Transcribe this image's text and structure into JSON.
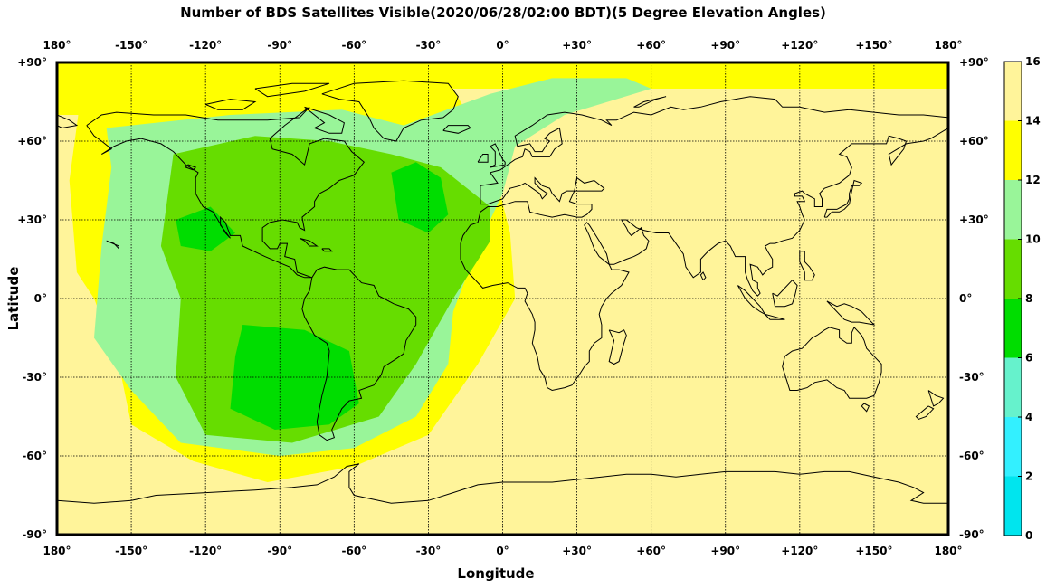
{
  "title": "Number of BDS Satellites Visible(2020/06/28/02:00 BDT)(5 Degree Elevation Angles)",
  "xlabel": "Longitude",
  "ylabel": "Latitude",
  "lon_ticks": [
    "180°",
    "-150°",
    "-120°",
    "-90°",
    "-60°",
    "-30°",
    "0°",
    "+30°",
    "+60°",
    "+90°",
    "+120°",
    "+150°",
    "180°"
  ],
  "lat_ticks": [
    "+90°",
    "+60°",
    "+30°",
    "0°",
    "-30°",
    "-60°",
    "-90°"
  ],
  "colorbar": {
    "ticks": [
      "0",
      "2",
      "4",
      "6",
      "8",
      "10",
      "12",
      "14",
      "16"
    ],
    "bands": [
      {
        "from": 0,
        "to": 2,
        "color": "#00e5ee"
      },
      {
        "from": 2,
        "to": 4,
        "color": "#33f0ff"
      },
      {
        "from": 4,
        "to": 6,
        "color": "#66f2cc"
      },
      {
        "from": 6,
        "to": 8,
        "color": "#00dd00"
      },
      {
        "from": 8,
        "to": 10,
        "color": "#66dd00"
      },
      {
        "from": 10,
        "to": 12,
        "color": "#99f599"
      },
      {
        "from": 12,
        "to": 14,
        "color": "#ffff00"
      },
      {
        "from": 14,
        "to": 16,
        "color": "#fff49a"
      }
    ]
  },
  "colors": {
    "c15": "#fff49a",
    "c13": "#ffff00",
    "c11": "#99f599",
    "c9": "#66dd00",
    "c7": "#00dd00",
    "c5": "#66f2cc"
  },
  "visibility_regions": [
    {
      "level": 13,
      "polys": [
        [
          [
            -180,
            90
          ],
          [
            180,
            90
          ],
          [
            180,
            80
          ],
          [
            -180,
            80
          ]
        ],
        [
          [
            -180,
            80
          ],
          [
            -150,
            80
          ],
          [
            -150,
            70
          ],
          [
            -180,
            70
          ]
        ],
        [
          [
            -165,
            0
          ],
          [
            -155,
            -25
          ],
          [
            -150,
            -48
          ],
          [
            -125,
            -62
          ],
          [
            -95,
            -70
          ],
          [
            -60,
            -64
          ],
          [
            -30,
            -52
          ],
          [
            -10,
            -25
          ],
          [
            5,
            0
          ],
          [
            3,
            25
          ],
          [
            -5,
            55
          ],
          [
            -20,
            80
          ],
          [
            -170,
            80
          ],
          [
            -175,
            45
          ],
          [
            -172,
            10
          ]
        ]
      ]
    },
    {
      "level": 11,
      "polys": [
        [
          [
            -160,
            65
          ],
          [
            -110,
            70
          ],
          [
            -65,
            72
          ],
          [
            -40,
            66
          ],
          [
            -5,
            78
          ],
          [
            20,
            84
          ],
          [
            50,
            84
          ],
          [
            60,
            80
          ],
          [
            25,
            70
          ],
          [
            5,
            58
          ],
          [
            0,
            40
          ],
          [
            -10,
            20
          ],
          [
            -20,
            -5
          ],
          [
            -22,
            -25
          ],
          [
            -35,
            -45
          ],
          [
            -60,
            -57
          ],
          [
            -90,
            -60
          ],
          [
            -130,
            -55
          ],
          [
            -150,
            -35
          ],
          [
            -165,
            -15
          ],
          [
            -162,
            20
          ],
          [
            -158,
            50
          ]
        ]
      ]
    },
    {
      "level": 9,
      "polys": [
        [
          [
            -133,
            55
          ],
          [
            -100,
            62
          ],
          [
            -70,
            60
          ],
          [
            -45,
            55
          ],
          [
            -25,
            50
          ],
          [
            -5,
            35
          ],
          [
            -5,
            22
          ],
          [
            -20,
            0
          ],
          [
            -35,
            -25
          ],
          [
            -50,
            -45
          ],
          [
            -85,
            -55
          ],
          [
            -120,
            -52
          ],
          [
            -132,
            -30
          ],
          [
            -130,
            0
          ],
          [
            -138,
            20
          ]
        ]
      ]
    },
    {
      "level": 7,
      "polys": [
        [
          [
            -132,
            30
          ],
          [
            -118,
            35
          ],
          [
            -108,
            25
          ],
          [
            -118,
            18
          ],
          [
            -130,
            20
          ]
        ],
        [
          [
            -45,
            48
          ],
          [
            -35,
            52
          ],
          [
            -25,
            46
          ],
          [
            -22,
            32
          ],
          [
            -30,
            25
          ],
          [
            -42,
            30
          ]
        ],
        [
          [
            -105,
            -10
          ],
          [
            -80,
            -12
          ],
          [
            -62,
            -20
          ],
          [
            -58,
            -40
          ],
          [
            -70,
            -48
          ],
          [
            -92,
            -50
          ],
          [
            -110,
            -42
          ],
          [
            -108,
            -22
          ]
        ]
      ]
    }
  ]
}
